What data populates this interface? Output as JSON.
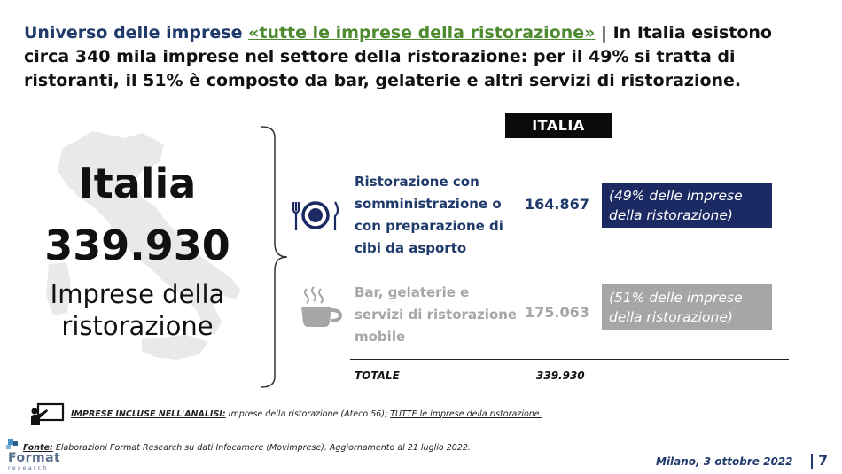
{
  "headline": {
    "part1": "Universo delle imprese",
    "part2": "«tutte le imprese della ristorazione»",
    "separator": " | ",
    "part3": "In Italia esistono circa 340 mila imprese nel settore della ristorazione: per il 49% si tratta di ristoranti, il 51% è composto da bar, gelaterie e altri servizi di ristorazione."
  },
  "left_panel": {
    "title": "Italia",
    "total": "339.930",
    "subtitle_line1": "Imprese della",
    "subtitle_line2": "ristorazione"
  },
  "table": {
    "column_header": "ITALIA",
    "rows": [
      {
        "icon": "dining-plate-cutlery-icon",
        "label_lines": [
          "Ristorazione con",
          "somministrazione o",
          "con preparazione di",
          "cibi da asporto"
        ],
        "value": "164.867",
        "share_line1": "(49% delle imprese",
        "share_line2": "della ristorazione)",
        "share_pct": 49,
        "color": "#1c2a63"
      },
      {
        "icon": "coffee-cup-icon",
        "label_lines": [
          "Bar, gelaterie e",
          "servizi di ristorazione",
          "mobile"
        ],
        "value": "175.063",
        "share_line1": "(51% delle imprese",
        "share_line2": "della ristorazione)",
        "share_pct": 51,
        "color": "#a6a6a6"
      }
    ],
    "total_label": "TOTALE",
    "total_value": "339.930"
  },
  "scope": {
    "label": "IMPRESE INCLUSE NELL'ANALISI:",
    "text": " Imprese della ristorazione (Ateco 56); ",
    "underlined": "TUTTE le imprese della ristorazione."
  },
  "source": {
    "label": "Fonte:",
    "text": " Elaborazioni Format Research su dati Infocamere (Movimprese). Aggiornamento al 21 luglio 2022."
  },
  "logo": {
    "name": "Format",
    "sub": "research"
  },
  "footer": {
    "date": "Milano, 3 ottobre 2022",
    "page": "7"
  }
}
